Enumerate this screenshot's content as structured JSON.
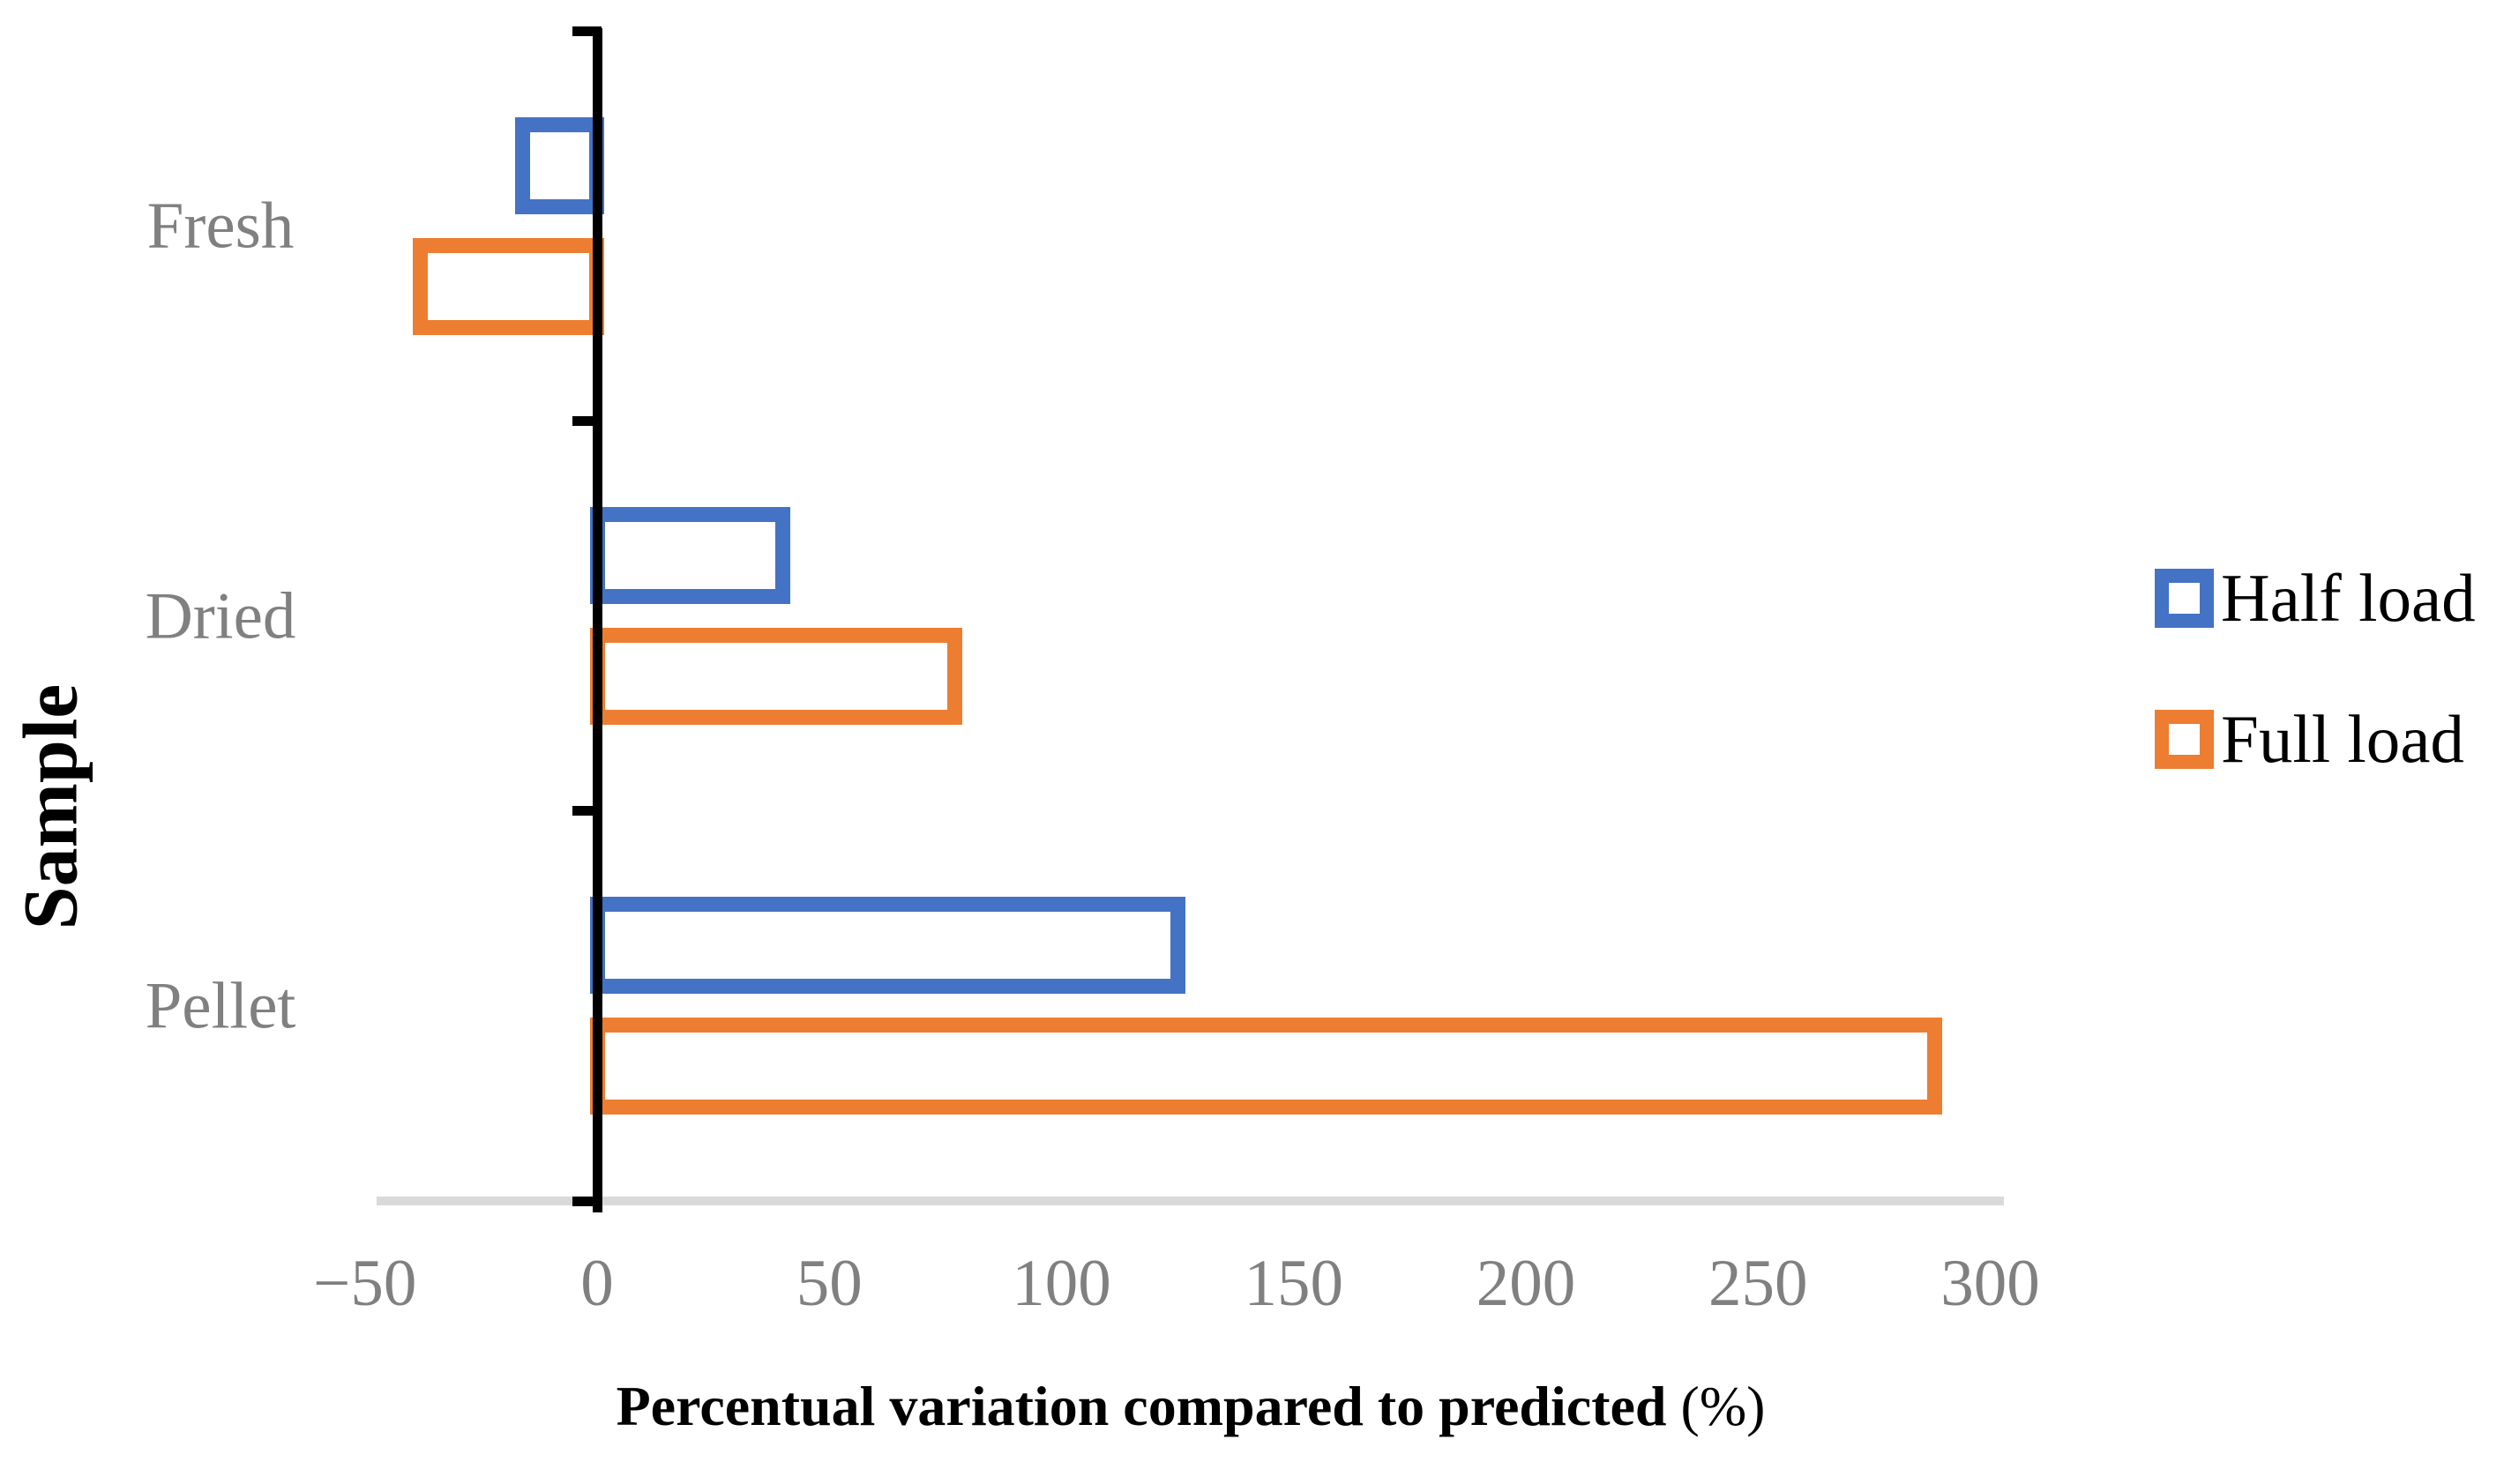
{
  "chart_data": {
    "type": "bar",
    "orientation": "horizontal",
    "bar_style": "outlined",
    "categories": [
      "Fresh",
      "Dried",
      "Pellet"
    ],
    "series": [
      {
        "name": "Half load",
        "color": "#4472C4",
        "values": [
          -16,
          40,
          125
        ]
      },
      {
        "name": "Full load",
        "color": "#ED7D31",
        "values": [
          -38,
          77,
          288
        ]
      }
    ],
    "xlabel_main": "Percentual variation compared to predicted",
    "xlabel_suffix": " (%)",
    "ylabel": "Sample",
    "xlim": [
      -50,
      300
    ],
    "xticks": [
      -50,
      0,
      50,
      100,
      150,
      200,
      250,
      300
    ],
    "xtick_labels": [
      "−50",
      "0",
      "50",
      "100",
      "150",
      "200",
      "250",
      "300"
    ],
    "grid": false,
    "legend_position": "right",
    "axis_line_color": "#000000",
    "baseline_color": "#D9D9D9",
    "tick_label_color": "#808080",
    "category_label_color": "#808080"
  }
}
